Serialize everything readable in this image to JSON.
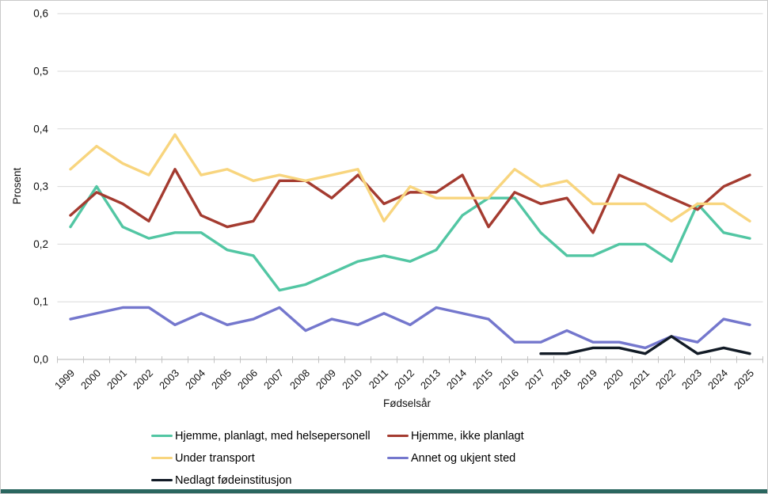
{
  "chart_data": {
    "type": "line",
    "title": "",
    "xlabel": "Fødselsår",
    "ylabel": "Prosent",
    "x": [
      1999,
      2000,
      2001,
      2002,
      2003,
      2004,
      2005,
      2006,
      2007,
      2008,
      2009,
      2010,
      2011,
      2012,
      2013,
      2014,
      2015,
      2016,
      2017,
      2018,
      2019,
      2020,
      2021,
      2022,
      2023,
      2024,
      2025
    ],
    "ylim": [
      0,
      0.6
    ],
    "ytick_values": [
      0,
      0.1,
      0.2,
      0.3,
      0.4,
      0.5,
      0.6
    ],
    "yticks": [
      "0,0",
      "0,1",
      "0,2",
      "0,3",
      "0,4",
      "0,5",
      "0,6"
    ],
    "grid": true,
    "legend_position": "bottom",
    "series": [
      {
        "name": "Hjemme, planlagt, med helsepersonell",
        "color": "#52c6a3",
        "values": [
          0.23,
          0.3,
          0.23,
          0.21,
          0.22,
          0.22,
          0.19,
          0.18,
          0.12,
          0.13,
          0.15,
          0.17,
          0.18,
          0.17,
          0.19,
          0.25,
          0.28,
          0.28,
          0.22,
          0.18,
          0.18,
          0.2,
          0.2,
          0.17,
          0.27,
          0.22,
          0.21
        ]
      },
      {
        "name": "Hjemme, ikke planlagt",
        "color": "#a43b30",
        "values": [
          0.25,
          0.29,
          0.27,
          0.24,
          0.33,
          0.25,
          0.23,
          0.24,
          0.31,
          0.31,
          0.28,
          0.32,
          0.27,
          0.29,
          0.29,
          0.32,
          0.23,
          0.29,
          0.27,
          0.28,
          0.22,
          0.32,
          0.3,
          0.28,
          0.26,
          0.3,
          0.32
        ]
      },
      {
        "name": "Under transport",
        "color": "#f8d57e",
        "values": [
          0.33,
          0.37,
          0.34,
          0.32,
          0.39,
          0.32,
          0.33,
          0.31,
          0.32,
          0.31,
          0.32,
          0.33,
          0.24,
          0.3,
          0.28,
          0.28,
          0.28,
          0.33,
          0.3,
          0.31,
          0.27,
          0.27,
          0.27,
          0.24,
          0.27,
          0.27,
          0.24
        ]
      },
      {
        "name": "Annet og ukjent sted",
        "color": "#7477cd",
        "values": [
          0.07,
          0.08,
          0.09,
          0.09,
          0.06,
          0.08,
          0.06,
          0.07,
          0.09,
          0.05,
          0.07,
          0.06,
          0.08,
          0.06,
          0.09,
          0.08,
          0.07,
          0.03,
          0.03,
          0.05,
          0.03,
          0.03,
          0.02,
          0.04,
          0.03,
          0.07,
          0.06
        ]
      },
      {
        "name": "Nedlagt fødeinstitusjon",
        "color": "#121b26",
        "values": [
          null,
          null,
          null,
          null,
          null,
          null,
          null,
          null,
          null,
          null,
          null,
          null,
          null,
          null,
          null,
          null,
          null,
          null,
          0.01,
          0.01,
          0.02,
          0.02,
          0.01,
          0.04,
          0.01,
          0.02,
          0.01
        ]
      }
    ]
  },
  "colors": {
    "gridline": "#d9d9d9",
    "axis": "#c3c3c3",
    "text": "#111111",
    "bottom_bar": "#2a665f",
    "background": "#ffffff"
  }
}
